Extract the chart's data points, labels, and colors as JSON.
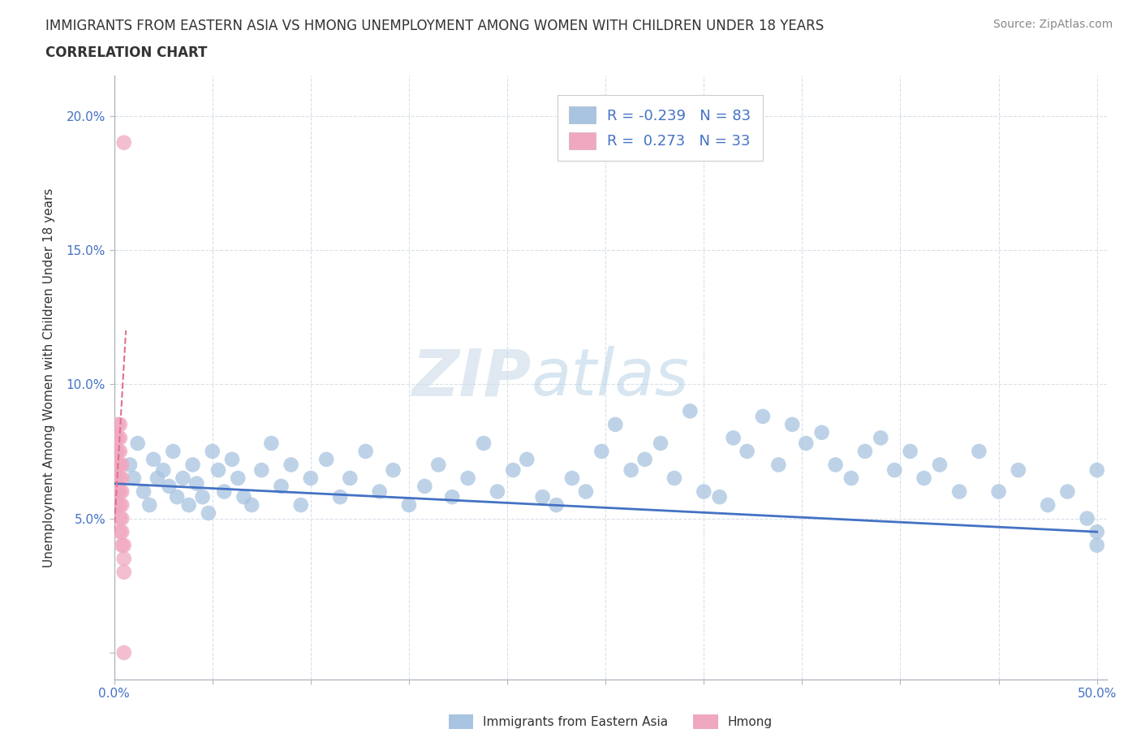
{
  "title1": "IMMIGRANTS FROM EASTERN ASIA VS HMONG UNEMPLOYMENT AMONG WOMEN WITH CHILDREN UNDER 18 YEARS",
  "title2": "CORRELATION CHART",
  "source": "Source: ZipAtlas.com",
  "ylabel": "Unemployment Among Women with Children Under 18 years",
  "xlim": [
    0.0,
    0.505
  ],
  "ylim": [
    -0.01,
    0.215
  ],
  "blue_R": -0.239,
  "blue_N": 83,
  "pink_R": 0.273,
  "pink_N": 33,
  "blue_color": "#a8c4e0",
  "pink_color": "#f0a8c0",
  "blue_line_color": "#4472c4",
  "pink_line_color": "#e07090",
  "grid_color": "#d8e0e8",
  "watermark_ZIP": "ZIP",
  "watermark_atlas": "atlas",
  "blue_scatter_x": [
    0.008,
    0.01,
    0.012,
    0.015,
    0.018,
    0.02,
    0.022,
    0.025,
    0.028,
    0.03,
    0.032,
    0.035,
    0.038,
    0.04,
    0.042,
    0.045,
    0.048,
    0.05,
    0.053,
    0.056,
    0.06,
    0.063,
    0.066,
    0.07,
    0.075,
    0.08,
    0.085,
    0.09,
    0.095,
    0.1,
    0.108,
    0.115,
    0.12,
    0.128,
    0.135,
    0.142,
    0.15,
    0.158,
    0.165,
    0.172,
    0.18,
    0.188,
    0.195,
    0.203,
    0.21,
    0.218,
    0.225,
    0.233,
    0.24,
    0.248,
    0.255,
    0.263,
    0.27,
    0.278,
    0.285,
    0.293,
    0.3,
    0.308,
    0.315,
    0.322,
    0.33,
    0.338,
    0.345,
    0.352,
    0.36,
    0.367,
    0.375,
    0.382,
    0.39,
    0.397,
    0.405,
    0.412,
    0.42,
    0.43,
    0.44,
    0.45,
    0.46,
    0.475,
    0.485,
    0.495,
    0.5,
    0.5,
    0.5
  ],
  "blue_scatter_y": [
    0.07,
    0.065,
    0.078,
    0.06,
    0.055,
    0.072,
    0.065,
    0.068,
    0.062,
    0.075,
    0.058,
    0.065,
    0.055,
    0.07,
    0.063,
    0.058,
    0.052,
    0.075,
    0.068,
    0.06,
    0.072,
    0.065,
    0.058,
    0.055,
    0.068,
    0.078,
    0.062,
    0.07,
    0.055,
    0.065,
    0.072,
    0.058,
    0.065,
    0.075,
    0.06,
    0.068,
    0.055,
    0.062,
    0.07,
    0.058,
    0.065,
    0.078,
    0.06,
    0.068,
    0.072,
    0.058,
    0.055,
    0.065,
    0.06,
    0.075,
    0.085,
    0.068,
    0.072,
    0.078,
    0.065,
    0.09,
    0.06,
    0.058,
    0.08,
    0.075,
    0.088,
    0.07,
    0.085,
    0.078,
    0.082,
    0.07,
    0.065,
    0.075,
    0.08,
    0.068,
    0.075,
    0.065,
    0.07,
    0.06,
    0.075,
    0.06,
    0.068,
    0.055,
    0.06,
    0.05,
    0.068,
    0.045,
    0.04
  ],
  "pink_scatter_x": [
    0.001,
    0.001,
    0.001,
    0.001,
    0.001,
    0.002,
    0.002,
    0.002,
    0.002,
    0.002,
    0.002,
    0.002,
    0.003,
    0.003,
    0.003,
    0.003,
    0.003,
    0.003,
    0.003,
    0.003,
    0.003,
    0.004,
    0.004,
    0.004,
    0.004,
    0.004,
    0.004,
    0.004,
    0.005,
    0.005,
    0.005,
    0.005,
    0.005
  ],
  "pink_scatter_y": [
    0.06,
    0.065,
    0.07,
    0.075,
    0.08,
    0.055,
    0.06,
    0.065,
    0.07,
    0.075,
    0.08,
    0.085,
    0.045,
    0.05,
    0.055,
    0.06,
    0.065,
    0.07,
    0.075,
    0.08,
    0.085,
    0.04,
    0.045,
    0.05,
    0.055,
    0.06,
    0.065,
    0.07,
    0.03,
    0.035,
    0.04,
    0.0,
    0.19
  ],
  "blue_line_x": [
    0.0,
    0.5
  ],
  "blue_line_y": [
    0.063,
    0.045
  ],
  "pink_line_x": [
    0.0,
    0.006
  ],
  "pink_line_y": [
    0.045,
    0.12
  ]
}
